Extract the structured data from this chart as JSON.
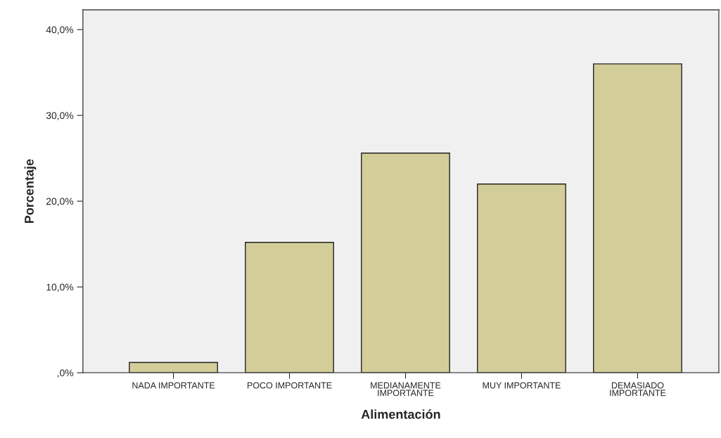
{
  "chart_data": {
    "type": "bar",
    "xlabel": "Alimentación",
    "ylabel": "Porcentaje",
    "categories": [
      "NADA IMPORTANTE",
      "POCO IMPORTANTE",
      "MEDIANAMENTE\nIMPORTANTE",
      "MUY IMPORTANTE",
      "DEMASIADO\nIMPORTANTE"
    ],
    "values": [
      1.2,
      15.2,
      25.6,
      22.0,
      36.0
    ],
    "color": "#d3ce99",
    "ylim": [
      0,
      42.3
    ],
    "yticks": [
      {
        "value": 0,
        "label": ",0%"
      },
      {
        "value": 10,
        "label": "10,0%"
      },
      {
        "value": 20,
        "label": "20,0%"
      },
      {
        "value": 30,
        "label": "30,0%"
      },
      {
        "value": 40,
        "label": "40,0%"
      }
    ],
    "grid": false
  }
}
